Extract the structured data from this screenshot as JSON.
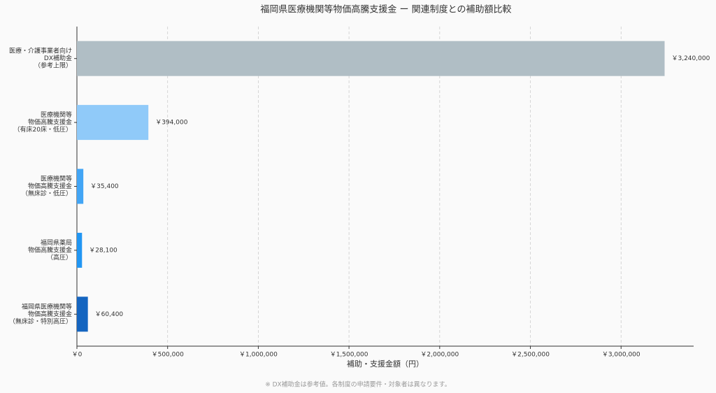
{
  "chart_data": {
    "type": "barh",
    "title": "福岡県医療機関等物価高騰支援金 ー 関連制度との補助額比較",
    "categories": [
      [
        "医療・介護事業者向け",
        "DX補助金",
        "（参考上限）"
      ],
      [
        "医療機関等",
        "物価高騰支援金",
        "（有床20床・低圧）"
      ],
      [
        "医療機関等",
        "物価高騰支援金",
        "（無床診・低圧）"
      ],
      [
        "福岡県薬局",
        "物価高騰支援金",
        "（高圧）"
      ],
      [
        "福岡県医療機関等",
        "物価高騰支援金",
        "（無床診・特別高圧）"
      ]
    ],
    "values": [
      3240000,
      394000,
      35400,
      28100,
      60400
    ],
    "value_labels": [
      "￥3,240,000",
      "￥394,000",
      "￥35,400",
      "￥28,100",
      "￥60,400"
    ],
    "colors": [
      "#b0bec5",
      "#90caf9",
      "#42a5f5",
      "#2196f3",
      "#1565c0"
    ],
    "xlabel": "補助・支援金額（円）",
    "xlim": [
      0,
      3400000
    ],
    "xticks": [
      {
        "value": 0,
        "label": "￥0"
      },
      {
        "value": 500000,
        "label": "￥500,000"
      },
      {
        "value": 1000000,
        "label": "￥1,000,000"
      },
      {
        "value": 1500000,
        "label": "￥1,500,000"
      },
      {
        "value": 2000000,
        "label": "￥2,000,000"
      },
      {
        "value": 2500000,
        "label": "￥2,500,000"
      },
      {
        "value": 3000000,
        "label": "￥3,000,000"
      }
    ],
    "grid": true,
    "footnote": "※ DX補助金は参考値。各制度の申請要件・対象者は異なります。"
  }
}
